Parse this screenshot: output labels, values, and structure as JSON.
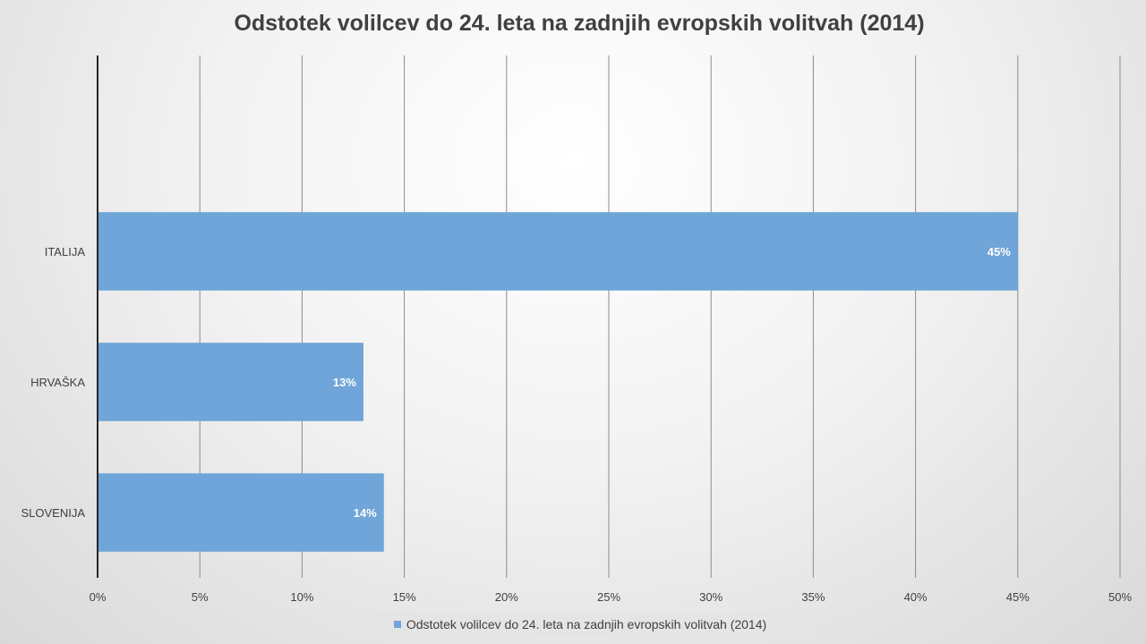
{
  "chart_data": {
    "type": "bar",
    "orientation": "horizontal",
    "title": "Odstotek volilcev do 24. leta na zadnjih evropskih volitvah (2014)",
    "categories": [
      "ITALIJA",
      "HRVAŠKA",
      "SLOVENIJA"
    ],
    "series": [
      {
        "name": "Odstotek volilcev do 24. leta na zadnjih evropskih volitvah (2014)",
        "values": [
          45,
          13,
          14
        ],
        "data_labels": [
          "45%",
          "13%",
          "14%"
        ],
        "color": "#6fa5d8"
      }
    ],
    "xlim": [
      0,
      50
    ],
    "x_ticks": [
      "0%",
      "5%",
      "10%",
      "15%",
      "20%",
      "25%",
      "30%",
      "35%",
      "40%",
      "45%",
      "50%"
    ],
    "grid": true,
    "legend_position": "bottom"
  }
}
